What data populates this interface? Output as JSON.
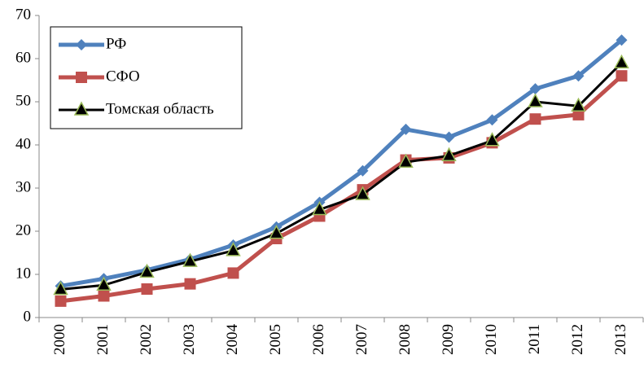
{
  "chart_data": {
    "type": "line",
    "categories": [
      "2000",
      "2001",
      "2002",
      "2003",
      "2004",
      "2005",
      "2006",
      "2007",
      "2008",
      "2009",
      "2010",
      "2011",
      "2012",
      "2013"
    ],
    "series": [
      {
        "name": "РФ",
        "color": "#4f81bd",
        "marker": "diamond",
        "values": [
          7.3,
          9.0,
          11.0,
          13.5,
          16.8,
          21.0,
          26.7,
          34.0,
          43.6,
          41.8,
          45.8,
          53.0,
          56.0,
          64.3
        ]
      },
      {
        "name": "СФО",
        "color": "#c0504d",
        "marker": "square",
        "values": [
          3.8,
          5.0,
          6.6,
          7.8,
          10.3,
          18.3,
          23.5,
          29.6,
          36.5,
          37.0,
          40.5,
          46.0,
          47.0,
          56.0
        ]
      },
      {
        "name": "Томская область",
        "color": "#000000",
        "marker": "triangle",
        "values": [
          6.5,
          7.5,
          10.5,
          13.0,
          15.5,
          19.5,
          25.0,
          28.5,
          36.0,
          37.5,
          41.0,
          50.0,
          49.0,
          59.0
        ]
      }
    ],
    "ylim": [
      0,
      70
    ],
    "yticks": [
      0,
      10,
      20,
      30,
      40,
      50,
      60,
      70
    ],
    "grid": false,
    "legend": "top-left"
  }
}
